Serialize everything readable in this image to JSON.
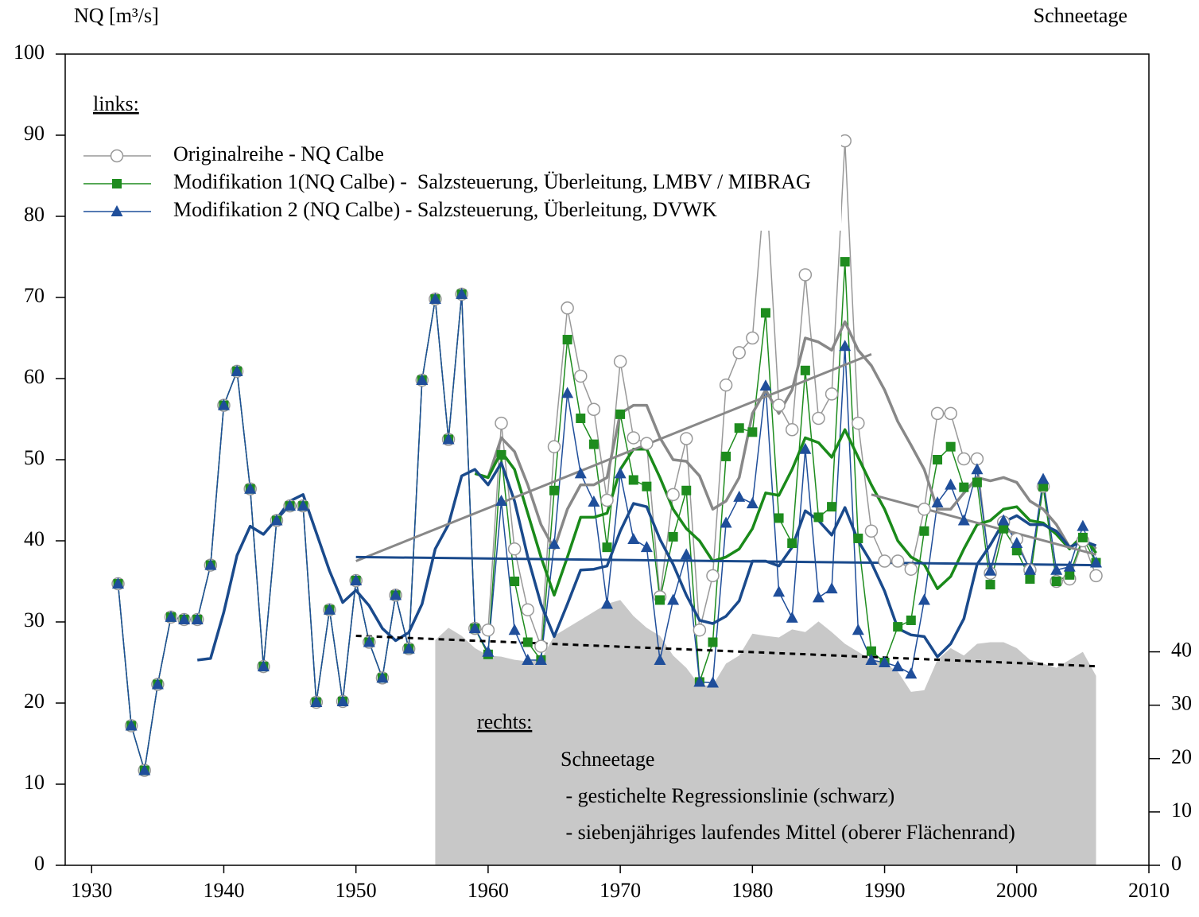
{
  "chart_data": {
    "type": "line",
    "y_label": "NQ [m³/s]",
    "y2_label": "Schneetage",
    "x": [
      1932,
      1933,
      1934,
      1935,
      1936,
      1937,
      1938,
      1939,
      1940,
      1941,
      1942,
      1943,
      1944,
      1945,
      1946,
      1947,
      1948,
      1949,
      1950,
      1951,
      1952,
      1953,
      1954,
      1955,
      1956,
      1957,
      1958,
      1959,
      1960,
      1961,
      1962,
      1963,
      1964,
      1965,
      1966,
      1967,
      1968,
      1969,
      1970,
      1971,
      1972,
      1973,
      1974,
      1975,
      1976,
      1977,
      1978,
      1979,
      1980,
      1981,
      1982,
      1983,
      1984,
      1985,
      1986,
      1987,
      1988,
      1989,
      1990,
      1991,
      1992,
      1993,
      1994,
      1995,
      1996,
      1997,
      1998,
      1999,
      2000,
      2001,
      2002,
      2003,
      2004,
      2005,
      2006
    ],
    "xlim": [
      1928,
      2010
    ],
    "xticks": [
      1930,
      1940,
      1950,
      1960,
      1970,
      1980,
      1990,
      2000,
      2010
    ],
    "ylim": [
      0,
      100
    ],
    "yticks": [
      0,
      10,
      20,
      30,
      40,
      50,
      60,
      70,
      80,
      90,
      100
    ],
    "y2lim": [
      0,
      152
    ],
    "y2ticks": [
      0,
      10,
      20,
      30,
      40
    ],
    "legend": "upper left",
    "series": [
      {
        "name": "Originalreihe - NQ Calbe",
        "color": "#999999",
        "marker": "circle",
        "width": 1.5,
        "values": [
          34.7,
          17.2,
          11.7,
          22.3,
          30.6,
          30.3,
          30.3,
          37,
          56.7,
          60.9,
          46.4,
          24.5,
          42.5,
          44.3,
          44.3,
          20.1,
          31.5,
          20.2,
          35.1,
          27.5,
          23.1,
          33.3,
          26.7,
          59.8,
          69.8,
          52.5,
          70.4,
          29.2,
          29,
          54.5,
          39,
          31.5,
          27,
          51.6,
          68.7,
          60.3,
          56.2,
          45,
          62.1,
          52.7,
          52,
          33.1,
          45.7,
          52.6,
          29,
          35.7,
          59.2,
          63.2,
          65,
          85,
          56.7,
          53.7,
          72.8,
          55.1,
          58.1,
          89.3,
          54.5,
          41.2,
          37.5,
          37.5,
          36.5,
          43.9,
          55.7,
          55.7,
          50.1,
          50.1,
          36,
          42.3,
          40.2,
          36.4,
          46.7,
          35,
          35.3,
          40,
          35.7
        ]
      },
      {
        "name": "Modifikation 1(NQ Calbe) -  Salzsteuerung, Überleitung, LMBV / MIBRAG",
        "color": "#1e8c1e",
        "marker": "square",
        "width": 1.5,
        "values": [
          34.7,
          17.2,
          11.7,
          22.3,
          30.6,
          30.3,
          30.3,
          37,
          56.7,
          60.9,
          46.4,
          24.5,
          42.5,
          44.3,
          44.3,
          20.1,
          31.5,
          20.2,
          35.1,
          27.5,
          23.1,
          33.3,
          26.7,
          59.8,
          69.8,
          52.5,
          70.4,
          29.2,
          26,
          50.6,
          35,
          27.5,
          25.3,
          46.2,
          64.8,
          55.1,
          51.9,
          39.2,
          55.6,
          47.5,
          46.7,
          32.7,
          40.5,
          46.2,
          22.6,
          27.5,
          50.4,
          53.9,
          53.4,
          68.1,
          42.8,
          39.7,
          61,
          42.9,
          44.2,
          74.4,
          40.3,
          26.4,
          25,
          29.4,
          30.2,
          41.2,
          50,
          51.6,
          46.6,
          47.2,
          34.6,
          41.5,
          38.8,
          35.3,
          46.7,
          35,
          35.8,
          40.4,
          37.3
        ]
      },
      {
        "name": "Modifikation 2 (NQ Calbe) - Salzsteuerung, Überleitung, DVWK",
        "color": "#1f4e9a",
        "marker": "triangle",
        "width": 1.5,
        "values": [
          34.7,
          17.2,
          11.7,
          22.3,
          30.6,
          30.3,
          30.3,
          37,
          56.7,
          60.9,
          46.4,
          24.5,
          42.5,
          44.3,
          44.3,
          20.1,
          31.5,
          20.2,
          35.1,
          27.5,
          23.1,
          33.3,
          26.7,
          59.8,
          69.8,
          52.5,
          70.4,
          29.2,
          26.3,
          44.9,
          29,
          25.3,
          25.3,
          39.6,
          58.2,
          48.3,
          44.8,
          32.2,
          48.3,
          40.2,
          39.2,
          25.3,
          32.7,
          38.3,
          22.6,
          22.5,
          42.2,
          45.4,
          44.6,
          59.1,
          33.7,
          30.5,
          51.3,
          33,
          34.1,
          64,
          29,
          25.3,
          25,
          24.5,
          23.6,
          32.7,
          44.7,
          46.9,
          42.5,
          48.8,
          36.3,
          42.5,
          39.7,
          36.4,
          47.6,
          36.4,
          36.8,
          41.8,
          37.3
        ]
      },
      {
        "color": "#888888",
        "width": 3.5,
        "values": [
          null,
          null,
          null,
          null,
          null,
          null,
          null,
          null,
          null,
          null,
          null,
          null,
          null,
          null,
          null,
          null,
          null,
          null,
          null,
          null,
          null,
          null,
          null,
          null,
          null,
          null,
          null,
          48.3,
          47.8,
          52.7,
          51,
          46.9,
          42,
          39,
          43.9,
          46.9,
          46.9,
          47.8,
          55.7,
          56.7,
          56.7,
          52.7,
          50,
          49.8,
          48,
          43.9,
          44.9,
          47.8,
          55.7,
          58.6,
          55.7,
          58.6,
          65,
          64.5,
          63.5,
          67,
          63.5,
          61.6,
          58.6,
          54.7,
          51.8,
          48.8,
          43.9,
          43.9,
          45.9,
          47.8,
          47.4,
          47.8,
          47.2,
          44.9,
          43.9,
          42,
          39.2,
          40.2,
          39
        ]
      },
      {
        "color": "#1a8a1a",
        "width": 3.5,
        "values": [
          null,
          null,
          null,
          null,
          null,
          null,
          null,
          null,
          null,
          null,
          null,
          null,
          null,
          null,
          null,
          null,
          null,
          null,
          null,
          null,
          null,
          null,
          null,
          null,
          null,
          null,
          null,
          48.3,
          47.8,
          51,
          48.8,
          43.4,
          38,
          33.3,
          38,
          42.9,
          42.9,
          43.4,
          48.8,
          51.3,
          51.3,
          47.8,
          43.9,
          41.5,
          40,
          37.5,
          38,
          39,
          41.5,
          45.9,
          45.6,
          48.8,
          52.7,
          52.1,
          50.3,
          53.7,
          50.3,
          46.9,
          43.9,
          40,
          38,
          37.1,
          34.1,
          35.6,
          39,
          42,
          42.5,
          43.9,
          44.2,
          42.5,
          42.2,
          40.8,
          39,
          40.7,
          38.5
        ]
      },
      {
        "color": "#1a4a8c",
        "width": 3.5,
        "values": [
          null,
          null,
          null,
          null,
          null,
          null,
          25.3,
          25.5,
          31.2,
          38.2,
          41.8,
          40.8,
          42.7,
          44.9,
          45.7,
          41,
          36.3,
          32.4,
          33.9,
          32,
          29.2,
          27.7,
          28.7,
          32.2,
          39,
          42,
          48,
          48.8,
          46.9,
          49.6,
          44.9,
          38,
          32.2,
          28.2,
          32.2,
          36.4,
          36.5,
          36.9,
          41.2,
          44.6,
          44.2,
          40.2,
          37.1,
          33.3,
          30.2,
          29.8,
          30.7,
          32.6,
          37.5,
          37.5,
          36.9,
          39.2,
          43.7,
          42.5,
          40.7,
          44.1,
          40,
          37.3,
          33.8,
          29.2,
          28.4,
          28.2,
          25.7,
          27.3,
          30.4,
          37.1,
          39.5,
          42.3,
          43.1,
          42,
          42,
          41.2,
          39.2,
          40,
          39.4
        ]
      },
      {
        "type": "area",
        "axis": "y2",
        "color": "#c8c8c8",
        "values": [
          null,
          null,
          null,
          null,
          null,
          null,
          null,
          null,
          null,
          null,
          null,
          null,
          null,
          null,
          null,
          null,
          null,
          null,
          null,
          null,
          null,
          null,
          null,
          null,
          42.2,
          44.5,
          43,
          40.7,
          39.3,
          39.1,
          38.5,
          38.2,
          38.5,
          43,
          44.5,
          46,
          47.5,
          49,
          49.7,
          46.7,
          44.5,
          43,
          39.3,
          37,
          33.7,
          33.7,
          37.8,
          39.3,
          43.4,
          43,
          42.7,
          44.2,
          43.7,
          45.7,
          43.7,
          41.5,
          40,
          38.5,
          37.8,
          36.3,
          32.5,
          32.8,
          38.5,
          40.7,
          39.3,
          41.5,
          41.8,
          41.8,
          40.7,
          38.5,
          37.8,
          37,
          38.5,
          40,
          35.5
        ]
      }
    ],
    "trend_lines": [
      {
        "color": "#888888",
        "x": [
          1950,
          1989
        ],
        "values": [
          37.5,
          63
        ]
      },
      {
        "color": "#888888",
        "x": [
          1989,
          2006
        ],
        "values": [
          45.7,
          38.3
        ]
      },
      {
        "color": "#1a4a8c",
        "x": [
          1950,
          2006
        ],
        "values": [
          38,
          37
        ]
      },
      {
        "color": "#000000",
        "dash": true,
        "axis": "y2",
        "x": [
          1950,
          2006
        ],
        "values": [
          43,
          37.3
        ]
      }
    ],
    "annotations": {
      "left_heading": "links:",
      "right_heading": "rechts:",
      "right_title": "Schneetage",
      "right_line1": " - gestichelte Regressionslinie (schwarz)",
      "right_line2": " - siebenjähriges laufendes Mittel (oberer Flächenrand)"
    }
  }
}
